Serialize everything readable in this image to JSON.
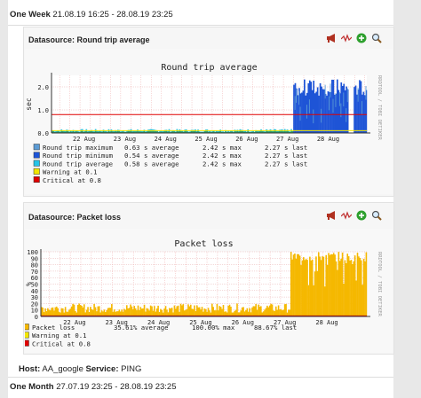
{
  "top": {
    "label": "One Week",
    "range": "21.08.19 16:25 - 28.08.19 23:25"
  },
  "bottom_host": {
    "host_label": "Host:",
    "host_value": "AA_google",
    "service_label": "Service:",
    "service_value": "PING"
  },
  "bottom_month": {
    "label": "One Month",
    "range": "27.07.19 23:25 - 28.08.19 23:25"
  },
  "icons": [
    "megaphone-icon",
    "graph-zoom-icon",
    "add-icon",
    "zoom-icon"
  ],
  "watermark": "RRDTOOL / TOBI OETIKER",
  "charts": [
    {
      "datasource_label": "Datasource: Round trip average",
      "title": "Round trip average",
      "ylabel": "sec",
      "yticks": [
        "0.0",
        "1.0",
        "2.0"
      ],
      "xticks": [
        "22 Aug",
        "23 Aug",
        "24 Aug",
        "25 Aug",
        "26 Aug",
        "27 Aug",
        "28 Aug"
      ],
      "legend": [
        {
          "color": "#5b9bd5",
          "label": "Round trip maximum",
          "v1": "0.63 s average",
          "v2": "2.42 s max",
          "v3": "2.27 s last"
        },
        {
          "color": "#1e54d6",
          "label": "Round trip minimum",
          "v1": "0.54 s average",
          "v2": "2.42 s max",
          "v3": "2.27 s last"
        },
        {
          "color": "#25c4e8",
          "label": "Round trip average",
          "v1": "0.58 s average",
          "v2": "2.42 s max",
          "v3": "2.27 s last"
        },
        {
          "color": "#f2e600",
          "label": "Warning at 0.1",
          "v1": "",
          "v2": "",
          "v3": ""
        },
        {
          "color": "#e00000",
          "label": "Critical at 0.8",
          "v1": "",
          "v2": "",
          "v3": ""
        }
      ]
    },
    {
      "datasource_label": "Datasource: Packet loss",
      "title": "Packet loss",
      "ylabel": "%",
      "yticks": [
        "0",
        "10",
        "20",
        "30",
        "40",
        "50",
        "60",
        "70",
        "80",
        "90",
        "100"
      ],
      "xticks": [
        "22 Aug",
        "23 Aug",
        "24 Aug",
        "25 Aug",
        "26 Aug",
        "27 Aug",
        "28 Aug"
      ],
      "legend": [
        {
          "color": "#f5b800",
          "label": "Packet loss",
          "v1": "35.61% average",
          "v2": "100.00% max",
          "v3": "88.67% last"
        },
        {
          "color": "#f2e600",
          "label": "Warning at 0.1",
          "v1": "",
          "v2": "",
          "v3": ""
        },
        {
          "color": "#e00000",
          "label": "Critical at 0.8",
          "v1": "",
          "v2": "",
          "v3": ""
        }
      ]
    }
  ],
  "chart_data": [
    {
      "type": "area",
      "title": "Round trip average",
      "ylabel": "sec",
      "ylim": [
        0,
        2.5
      ],
      "x": [
        "22 Aug",
        "23 Aug",
        "24 Aug",
        "25 Aug",
        "26 Aug",
        "27 Aug",
        "28 Aug"
      ],
      "series": [
        {
          "name": "Round trip maximum",
          "values": [
            0.08,
            0.1,
            0.07,
            0.09,
            0.1,
            2.3,
            2.27
          ]
        },
        {
          "name": "Round trip minimum",
          "values": [
            0.05,
            0.06,
            0.05,
            0.06,
            0.06,
            1.9,
            2.27
          ]
        },
        {
          "name": "Round trip average",
          "values": [
            0.07,
            0.08,
            0.06,
            0.08,
            0.08,
            2.1,
            2.27
          ]
        }
      ],
      "thresholds": {
        "warning": 0.1,
        "critical": 0.8
      }
    },
    {
      "type": "area",
      "title": "Packet loss",
      "ylabel": "%",
      "ylim": [
        0,
        100
      ],
      "x": [
        "22 Aug",
        "23 Aug",
        "24 Aug",
        "25 Aug",
        "26 Aug",
        "27 Aug",
        "28 Aug"
      ],
      "series": [
        {
          "name": "Packet loss",
          "values": [
            12,
            15,
            10,
            14,
            15,
            95,
            88.67
          ]
        }
      ],
      "thresholds": {
        "warning": 0.1,
        "critical": 0.8
      }
    }
  ]
}
